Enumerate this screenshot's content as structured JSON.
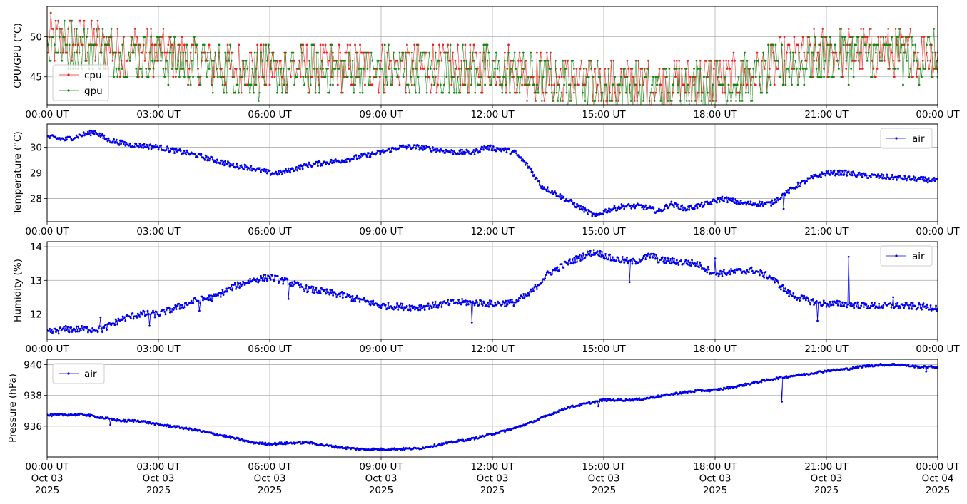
{
  "chart_data": [
    {
      "type": "line",
      "ylabel": "CPU/GPU (°C)",
      "ylim": [
        41.5,
        53.8
      ],
      "yticks": [
        45,
        50
      ],
      "xlim_hours": [
        0,
        24
      ],
      "xtick_labels": [
        "00:00 UT",
        "03:00 UT",
        "06:00 UT",
        "09:00 UT",
        "12:00 UT",
        "15:00 UT",
        "18:00 UT",
        "21:00 UT",
        "00:00 UT"
      ],
      "grid": true,
      "legend_position": "lower-left",
      "markers": true,
      "noise": 3.2,
      "series": [
        {
          "name": "cpu",
          "color": "#e8221a",
          "x_hours": [
            0,
            1,
            2,
            3,
            4,
            4.5,
            6,
            9,
            12,
            13,
            14,
            15,
            16,
            17,
            18,
            19,
            20,
            21,
            22,
            23,
            24
          ],
          "values": [
            49.5,
            49.5,
            48.5,
            48.0,
            47.0,
            46.5,
            46.0,
            46.3,
            46.3,
            45.5,
            44.5,
            44.2,
            44.0,
            44.3,
            44.7,
            45.0,
            47.0,
            48.0,
            48.2,
            48.0,
            48.0
          ]
        },
        {
          "name": "gpu",
          "color": "#138613",
          "x_hours": [
            0,
            1,
            2,
            3,
            4,
            4.5,
            6,
            9,
            12,
            13,
            14,
            15,
            16,
            17,
            18,
            19,
            20,
            21,
            22,
            23,
            24
          ],
          "values": [
            49.0,
            49.0,
            48.0,
            47.5,
            46.7,
            46.0,
            45.5,
            45.8,
            45.8,
            45.0,
            44.0,
            43.8,
            43.6,
            43.8,
            44.2,
            44.6,
            46.5,
            47.5,
            47.8,
            47.5,
            47.5
          ]
        }
      ]
    },
    {
      "type": "line",
      "ylabel": "Temperature (°C)",
      "ylim": [
        27.1,
        30.9
      ],
      "yticks": [
        28,
        29,
        30
      ],
      "xlim_hours": [
        0,
        24
      ],
      "xtick_labels": [
        "00:00 UT",
        "03:00 UT",
        "06:00 UT",
        "09:00 UT",
        "12:00 UT",
        "15:00 UT",
        "18:00 UT",
        "21:00 UT",
        "00:00 UT"
      ],
      "grid": true,
      "legend_position": "upper-right",
      "markers": true,
      "noise": 0.1,
      "series": [
        {
          "name": "air",
          "color": "#0000ee",
          "x_hours": [
            0,
            0.5,
            1.0,
            1.3,
            1.6,
            2.2,
            3.0,
            4.0,
            5.0,
            5.5,
            6.0,
            6.3,
            7.0,
            8.0,
            9.0,
            9.5,
            10.0,
            10.5,
            11.0,
            11.5,
            11.8,
            12.3,
            12.6,
            13.0,
            13.3,
            13.7,
            14.3,
            14.8,
            15.0,
            15.5,
            16.0,
            16.5,
            16.8,
            17.2,
            17.8,
            18.2,
            18.8,
            19.5,
            19.8,
            20.2,
            20.6,
            21.0,
            21.5,
            22.0,
            23.0,
            24.0
          ],
          "values": [
            30.4,
            30.3,
            30.5,
            30.6,
            30.3,
            30.1,
            30.0,
            29.7,
            29.3,
            29.2,
            29.0,
            29.0,
            29.3,
            29.5,
            29.8,
            30.0,
            30.0,
            29.9,
            29.8,
            29.8,
            30.0,
            29.9,
            29.8,
            29.2,
            28.5,
            28.2,
            27.7,
            27.3,
            27.5,
            27.7,
            27.7,
            27.5,
            27.8,
            27.6,
            27.8,
            28.0,
            27.8,
            27.8,
            28.1,
            28.5,
            28.8,
            29.0,
            29.0,
            28.9,
            28.8,
            28.7
          ],
          "spikes": [
            {
              "x_hour": 19.85,
              "value": 27.6
            }
          ]
        }
      ]
    },
    {
      "type": "line",
      "ylabel": "Humidity (%)",
      "ylim": [
        11.25,
        14.15
      ],
      "yticks": [
        12,
        13,
        14
      ],
      "xlim_hours": [
        0,
        24
      ],
      "xtick_labels": [
        "00:00 UT",
        "03:00 UT",
        "06:00 UT",
        "09:00 UT",
        "12:00 UT",
        "15:00 UT",
        "18:00 UT",
        "21:00 UT",
        "00:00 UT"
      ],
      "grid": true,
      "legend_position": "upper-right",
      "markers": true,
      "noise": 0.1,
      "series": [
        {
          "name": "air",
          "color": "#0000ee",
          "x_hours": [
            0,
            0.5,
            1.0,
            1.5,
            2.0,
            2.5,
            3.0,
            3.5,
            4.0,
            4.5,
            5.0,
            5.5,
            6.0,
            6.5,
            7.0,
            8.0,
            9.0,
            10.0,
            11.0,
            11.5,
            12.0,
            12.6,
            13.0,
            13.5,
            14.0,
            14.5,
            14.8,
            15.2,
            15.8,
            16.3,
            16.5,
            17.0,
            17.5,
            18.0,
            18.5,
            19.0,
            19.5,
            20.0,
            20.5,
            21.0,
            21.5,
            22.0,
            23.0,
            24.0
          ],
          "values": [
            11.45,
            11.55,
            11.55,
            11.55,
            11.85,
            12.0,
            12.0,
            12.2,
            12.4,
            12.5,
            12.8,
            13.0,
            13.1,
            12.95,
            12.75,
            12.55,
            12.25,
            12.2,
            12.35,
            12.35,
            12.3,
            12.35,
            12.6,
            13.2,
            13.5,
            13.75,
            13.85,
            13.65,
            13.55,
            13.75,
            13.6,
            13.55,
            13.5,
            13.2,
            13.25,
            13.3,
            13.1,
            12.6,
            12.4,
            12.3,
            12.3,
            12.25,
            12.25,
            12.2
          ],
          "spikes": [
            {
              "x_hour": 1.45,
              "value": 11.9
            },
            {
              "x_hour": 2.75,
              "value": 11.65
            },
            {
              "x_hour": 4.1,
              "value": 12.1
            },
            {
              "x_hour": 6.5,
              "value": 12.45
            },
            {
              "x_hour": 11.45,
              "value": 11.75
            },
            {
              "x_hour": 15.7,
              "value": 12.95
            },
            {
              "x_hour": 18.0,
              "value": 13.65
            },
            {
              "x_hour": 20.75,
              "value": 11.8
            },
            {
              "x_hour": 21.6,
              "value": 13.7
            },
            {
              "x_hour": 22.8,
              "value": 12.5
            }
          ]
        }
      ]
    },
    {
      "type": "line",
      "ylabel": "Pressure (hPa)",
      "ylim": [
        934.0,
        940.35
      ],
      "yticks": [
        936,
        938,
        940
      ],
      "xlim_hours": [
        0,
        24
      ],
      "xtick_labels": [
        "00:00 UT\nOct 03\n2025",
        "03:00 UT\nOct 03\n2025",
        "06:00 UT\nOct 03\n2025",
        "09:00 UT\nOct 03\n2025",
        "12:00 UT\nOct 03\n2025",
        "15:00 UT\nOct 03\n2025",
        "18:00 UT\nOct 03\n2025",
        "21:00 UT\nOct 03\n2025",
        "00:00 UT\nOct 04\n2025"
      ],
      "grid": true,
      "legend_position": "upper-left",
      "markers": true,
      "noise": 0.07,
      "series": [
        {
          "name": "air",
          "color": "#0000ee",
          "x_hours": [
            0,
            0.5,
            1.0,
            1.5,
            2.0,
            2.5,
            3.0,
            3.5,
            4.0,
            5.0,
            5.5,
            6.0,
            7.0,
            7.5,
            8.0,
            8.5,
            9.0,
            10.0,
            11.0,
            11.5,
            12.0,
            12.5,
            13.0,
            13.5,
            14.0,
            14.5,
            15.0,
            15.5,
            16.0,
            16.5,
            17.0,
            17.5,
            18.0,
            18.5,
            19.0,
            19.5,
            20.0,
            20.5,
            21.0,
            21.5,
            22.0,
            22.5,
            23.0,
            23.5,
            24.0
          ],
          "values": [
            936.7,
            936.75,
            936.75,
            936.55,
            936.35,
            936.35,
            936.1,
            935.95,
            935.75,
            935.25,
            934.95,
            934.85,
            934.95,
            934.75,
            934.6,
            934.5,
            934.5,
            934.55,
            935.0,
            935.2,
            935.5,
            935.8,
            936.2,
            936.7,
            937.2,
            937.45,
            937.7,
            937.7,
            937.75,
            937.95,
            938.15,
            938.3,
            938.35,
            938.55,
            938.8,
            939.05,
            939.25,
            939.4,
            939.6,
            939.7,
            939.9,
            940.0,
            940.0,
            939.85,
            939.85
          ],
          "spikes": [
            {
              "x_hour": 1.7,
              "value": 936.1
            },
            {
              "x_hour": 14.85,
              "value": 937.3
            },
            {
              "x_hour": 19.8,
              "value": 937.6
            },
            {
              "x_hour": 23.7,
              "value": 939.55
            }
          ]
        }
      ]
    }
  ]
}
